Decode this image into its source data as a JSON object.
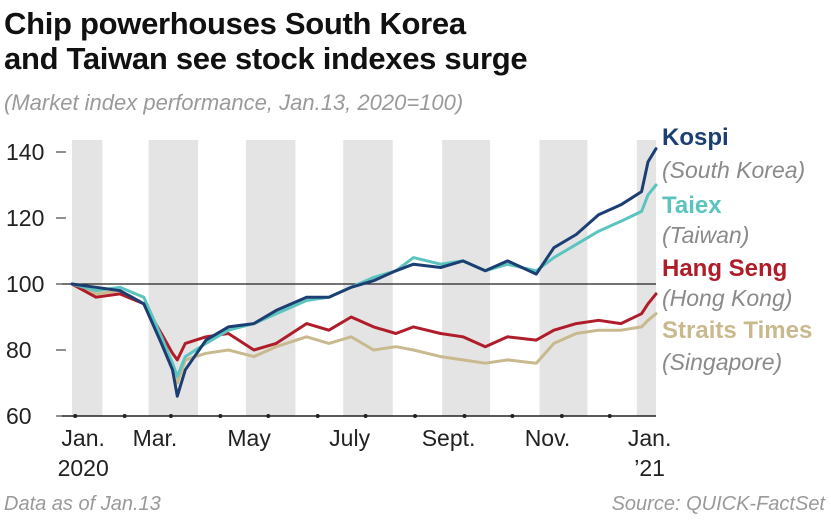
{
  "title_line1": "Chip powerhouses South Korea",
  "title_line2": "and Taiwan see stock indexes surge",
  "subtitle": "(Market index performance, Jan.13, 2020=100)",
  "footnote_left": "Data as of Jan.13",
  "footnote_right": "Source: QUICK-FactSet",
  "colors": {
    "kospi": "#1c3f73",
    "taiex": "#5cc4bf",
    "hang_seng": "#b01d2a",
    "straits_times": "#c9b98e",
    "band": "#e4e4e4",
    "grid": "#222222",
    "label_gray": "#8a8a8a"
  },
  "chart_data": {
    "type": "line",
    "title": "Chip powerhouses South Korea and Taiwan see stock indexes surge",
    "subtitle": "(Market index performance, Jan.13, 2020=100)",
    "ylim": [
      60,
      145
    ],
    "yticks": [
      60,
      80,
      100,
      120,
      140
    ],
    "baseline": 100,
    "xlim": [
      "2020-01-13",
      "2021-01-13"
    ],
    "x_tick_labels": [
      {
        "label": "Jan.",
        "sublabel": "2020"
      },
      {
        "label": "Mar.",
        "sublabel": ""
      },
      {
        "label": "May",
        "sublabel": ""
      },
      {
        "label": "July",
        "sublabel": ""
      },
      {
        "label": "Sept.",
        "sublabel": ""
      },
      {
        "label": "Nov.",
        "sublabel": ""
      },
      {
        "label": "Jan.",
        "sublabel": "’21"
      }
    ],
    "x": [
      "2020-01-13",
      "2020-01-28",
      "2020-02-12",
      "2020-02-27",
      "2020-03-09",
      "2020-03-16",
      "2020-03-19",
      "2020-03-24",
      "2020-04-06",
      "2020-04-20",
      "2020-05-06",
      "2020-05-20",
      "2020-06-08",
      "2020-06-22",
      "2020-07-06",
      "2020-07-20",
      "2020-08-03",
      "2020-08-14",
      "2020-08-31",
      "2020-09-14",
      "2020-09-28",
      "2020-10-12",
      "2020-10-30",
      "2020-11-10",
      "2020-11-24",
      "2020-12-08",
      "2020-12-22",
      "2021-01-04",
      "2021-01-08",
      "2021-01-13"
    ],
    "series": [
      {
        "name": "Kospi",
        "sublabel": "(South Korea)",
        "color_key": "kospi",
        "values": [
          100,
          99,
          98,
          94,
          82,
          74,
          66,
          74,
          83,
          87,
          88,
          92,
          96,
          96,
          99,
          101,
          104,
          106,
          105,
          107,
          104,
          107,
          103,
          111,
          115,
          121,
          124,
          128,
          137,
          141
        ]
      },
      {
        "name": "Taiex",
        "sublabel": "(Taiwan)",
        "color_key": "taiex",
        "values": [
          100,
          98,
          99,
          96,
          84,
          76,
          72,
          78,
          82,
          86,
          88,
          91,
          95,
          96,
          99,
          102,
          104,
          108,
          106,
          107,
          104,
          106,
          104,
          108,
          112,
          116,
          119,
          122,
          127,
          130
        ]
      },
      {
        "name": "Hang Seng",
        "sublabel": "(Hong Kong)",
        "color_key": "hang_seng",
        "values": [
          100,
          96,
          97,
          94,
          85,
          79,
          77,
          82,
          84,
          85,
          80,
          82,
          88,
          86,
          90,
          87,
          85,
          87,
          85,
          84,
          81,
          84,
          83,
          86,
          88,
          89,
          88,
          91,
          94,
          97
        ]
      },
      {
        "name": "Straits Times",
        "sublabel": "(Singapore)",
        "color_key": "straits_times",
        "values": [
          100,
          97,
          98,
          94,
          82,
          74,
          70,
          77,
          79,
          80,
          78,
          81,
          84,
          82,
          84,
          80,
          81,
          80,
          78,
          77,
          76,
          77,
          76,
          82,
          85,
          86,
          86,
          87,
          89,
          91
        ]
      }
    ]
  }
}
